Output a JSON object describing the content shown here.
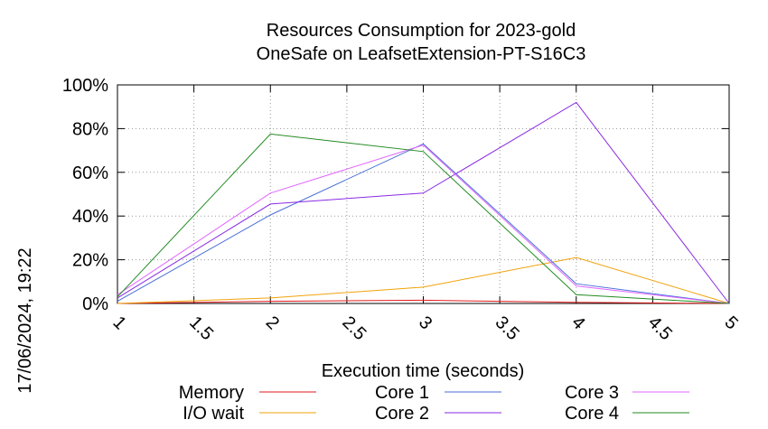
{
  "chart_data": {
    "type": "line",
    "title": "Resources Consumption for 2023-gold",
    "subtitle": "OneSafe on LeafsetExtension-PT-S16C3",
    "xlabel": "Execution time (seconds)",
    "ylabel": "",
    "xlim": [
      1,
      5
    ],
    "ylim": [
      0,
      100
    ],
    "grid": true,
    "legend_position": "bottom",
    "x_ticks": [
      "1",
      "1.5",
      "2",
      "2.5",
      "3",
      "3.5",
      "4",
      "4.5",
      "5"
    ],
    "y_ticks": [
      "0%",
      "20%",
      "40%",
      "60%",
      "80%",
      "100%"
    ],
    "x": [
      1,
      2,
      3,
      4,
      5
    ],
    "series": [
      {
        "name": "Memory",
        "color": "#e31a1c",
        "values": [
          0,
          1,
          1.5,
          0.5,
          0
        ]
      },
      {
        "name": "I/O wait",
        "color": "#f0a30a",
        "values": [
          0,
          2.5,
          7.5,
          21,
          0
        ]
      },
      {
        "name": "Core 1",
        "color": "#4a6fd8",
        "values": [
          1,
          40.5,
          73,
          9,
          0
        ]
      },
      {
        "name": "Core 2",
        "color": "#8a2be2",
        "values": [
          2.5,
          45.5,
          50.5,
          92,
          0
        ]
      },
      {
        "name": "Core 3",
        "color": "#e066ff",
        "values": [
          4,
          50.5,
          72.5,
          8,
          0
        ]
      },
      {
        "name": "Core 4",
        "color": "#228b22",
        "values": [
          3,
          77.5,
          69.5,
          4,
          0
        ]
      }
    ]
  },
  "timestamp": "17/06/2024, 19:22"
}
